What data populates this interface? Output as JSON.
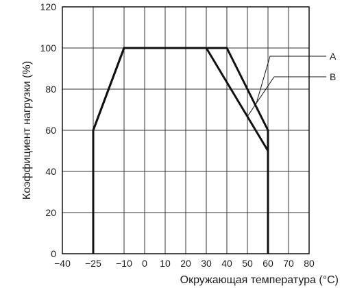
{
  "chart_data": {
    "type": "line",
    "title": "",
    "xlabel": "Окружающая температура (°С)",
    "ylabel": "Коэффициент нагрузки (%)",
    "xlim": [
      -40,
      80
    ],
    "ylim": [
      0,
      120
    ],
    "x_ticks": [
      "−40",
      "−25",
      "−10",
      "0",
      "10",
      "20",
      "30",
      "40",
      "50",
      "60",
      "70",
      "80"
    ],
    "y_ticks": [
      "0",
      "20",
      "40",
      "60",
      "80",
      "100",
      "120"
    ],
    "grid": true,
    "series": [
      {
        "name": "A",
        "x": [
          -25,
          -25,
          -10,
          40,
          60,
          60
        ],
        "y": [
          0,
          60,
          100,
          100,
          60,
          0
        ]
      },
      {
        "name": "B",
        "x": [
          -25,
          -25,
          -10,
          30,
          60,
          60
        ],
        "y": [
          0,
          60,
          100,
          100,
          50,
          0
        ]
      }
    ],
    "colors": {
      "line": "#111111",
      "grid": "#333333"
    }
  }
}
